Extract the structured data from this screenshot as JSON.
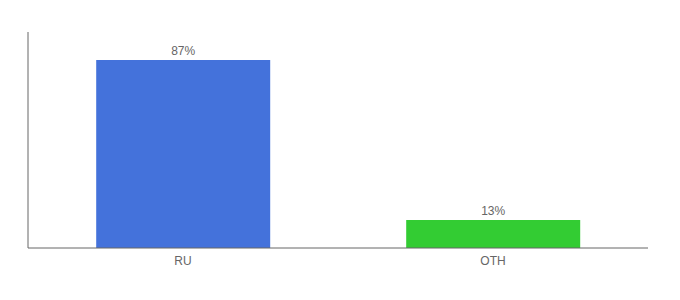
{
  "chart_data": {
    "type": "bar",
    "categories": [
      "RU",
      "OTH"
    ],
    "values": [
      87,
      13
    ],
    "value_labels": [
      "87%",
      "13%"
    ],
    "colors": [
      "#4472db",
      "#33cc33"
    ],
    "ylim": [
      0,
      100
    ],
    "data_labels": true,
    "tick_labels": "x",
    "grid": false
  }
}
